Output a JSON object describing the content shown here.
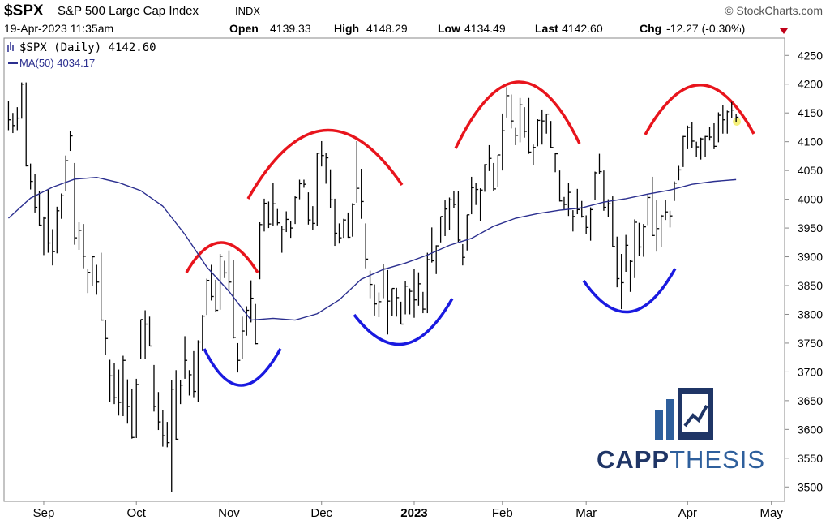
{
  "header": {
    "symbol": "$SPX",
    "name": "S&P 500 Large Cap Index",
    "exchange": "INDX",
    "source": "© StockCharts.com",
    "timestamp": "19-Apr-2023 11:35am",
    "quote": [
      {
        "label": "Open",
        "value": "4139.33"
      },
      {
        "label": "High",
        "value": "4148.29"
      },
      {
        "label": "Low",
        "value": "4134.49"
      },
      {
        "label": "Last",
        "value": "4142.60"
      },
      {
        "label": "Chg",
        "value": "-12.27 (-0.30%)"
      }
    ],
    "logo": {
      "bold": "CAPP",
      "light": "THESIS"
    }
  },
  "chart_data": {
    "type": "hlc",
    "series": [
      {
        "name": "$SPX (Daily) 4142.60",
        "color": "#000000",
        "high": [
          4170,
          4150,
          4160,
          4203,
          4203,
          4062,
          4044,
          4015,
          3970,
          4018,
          3948,
          3987,
          4010,
          4076,
          4119,
          4063,
          3960,
          3957,
          3879,
          3902,
          3886,
          3907,
          3790,
          3721,
          3716,
          3704,
          3728,
          3687,
          3671,
          3688,
          3791,
          3807,
          3796,
          3712,
          3665,
          3633,
          3613,
          3685,
          3703,
          3686,
          3762,
          3703,
          3736,
          3755,
          3799,
          3862,
          3886,
          3860,
          3905,
          3893,
          3911,
          3894,
          3750,
          3796,
          3814,
          3859,
          3818,
          3960,
          4001,
          3996,
          4029,
          3983,
          3954,
          3979,
          3962,
          4005,
          4034,
          4034,
          4012,
          3988,
          4080,
          4101,
          4081,
          4052,
          4001,
          3958,
          3966,
          3977,
          3993,
          4101,
          4053,
          3958,
          3876,
          3852,
          3838,
          3888,
          3877,
          3845,
          3846,
          3822,
          3858,
          3845,
          3879,
          3873,
          3839,
          3907,
          3951,
          3920,
          3970,
          3998,
          4003,
          4015,
          4014,
          3922,
          3973,
          4039,
          4028,
          4019,
          4061,
          4094,
          4063,
          4077,
          4149,
          4195,
          4182,
          4124,
          4176,
          4160,
          4176,
          4095,
          4139,
          4156,
          4148,
          4136,
          4081,
          4050,
          4004,
          4028,
          3981,
          4018,
          3997,
          3972,
          3986,
          4048,
          4079,
          4050,
          4000,
          4005,
          3935,
          3905,
          3938,
          3894,
          3965,
          3959,
          3957,
          4009,
          4039,
          3998,
          3973,
          3999,
          3980,
          4031,
          4058,
          4110,
          4128,
          4134,
          4100,
          4107,
          4110,
          4125,
          4132,
          4151,
          4164,
          4154,
          4169,
          4148.29
        ],
        "low": [
          4120,
          4115,
          4120,
          4140,
          4057,
          4017,
          3977,
          3954,
          3903,
          3907,
          3885,
          3906,
          3966,
          4015,
          4084,
          3921,
          3912,
          3880,
          3837,
          3850,
          3834,
          3789,
          3730,
          3647,
          3644,
          3624,
          3623,
          3610,
          3584,
          3585,
          3722,
          3722,
          3745,
          3631,
          3599,
          3570,
          3569,
          3491,
          3582,
          3644,
          3688,
          3659,
          3656,
          3648,
          3736,
          3799,
          3824,
          3804,
          3808,
          3863,
          3843,
          3758,
          3699,
          3722,
          3763,
          3786,
          3748,
          3861,
          3944,
          3950,
          3953,
          3955,
          3907,
          3943,
          3933,
          3957,
          4000,
          4020,
          3956,
          3947,
          3954,
          4057,
          4027,
          3984,
          3919,
          3923,
          3933,
          3933,
          3935,
          3994,
          3966,
          3880,
          3828,
          3798,
          3795,
          3828,
          3765,
          3797,
          3796,
          3783,
          3800,
          3800,
          3794,
          3815,
          3802,
          3802,
          3890,
          3870,
          3925,
          3936,
          3947,
          3984,
          3926,
          3885,
          3911,
          3974,
          3990,
          3962,
          4013,
          4049,
          4015,
          4021,
          4050,
          4142,
          4123,
          4094,
          4099,
          4107,
          4079,
          4060,
          4092,
          4095,
          4114,
          4089,
          4047,
          3996,
          3981,
          3971,
          3944,
          3974,
          3968,
          3940,
          3928,
          3999,
          4044,
          3980,
          3969,
          3917,
          3847,
          3809,
          3874,
          3839,
          3863,
          3901,
          3900,
          3955,
          3936,
          3909,
          3917,
          3964,
          3951,
          3997,
          4033,
          4056,
          4087,
          4089,
          4073,
          4069,
          4073,
          4102,
          4087,
          4099,
          4114,
          4114,
          4141,
          4134.49
        ],
        "close": [
          4138,
          4128,
          4141,
          4200,
          4058,
          4031,
          3986,
          3955,
          3967,
          3924,
          3909,
          3980,
          4006,
          4067,
          4110,
          3933,
          3946,
          3901,
          3873,
          3900,
          3856,
          3790,
          3758,
          3693,
          3655,
          3647,
          3720,
          3640,
          3586,
          3678,
          3791,
          3783,
          3745,
          3640,
          3613,
          3589,
          3577,
          3670,
          3583,
          3677,
          3720,
          3695,
          3666,
          3752,
          3797,
          3859,
          3831,
          3807,
          3901,
          3872,
          3856,
          3760,
          3720,
          3771,
          3807,
          3828,
          3749,
          3956,
          3993,
          3957,
          3992,
          3959,
          3947,
          3965,
          3950,
          4003,
          4027,
          4026,
          3964,
          3958,
          4080,
          4076,
          4072,
          3999,
          3941,
          3933,
          3964,
          3934,
          3991,
          4019,
          3996,
          3896,
          3852,
          3818,
          3822,
          3879,
          3823,
          3845,
          3829,
          3783,
          3849,
          3840,
          3825,
          3853,
          3809,
          3895,
          3893,
          3919,
          3970,
          3983,
          3999,
          3991,
          3929,
          3899,
          3973,
          4020,
          4017,
          4016,
          4060,
          4071,
          4018,
          4077,
          4119,
          4180,
          4136,
          4111,
          4164,
          4118,
          4082,
          4090,
          4137,
          4136,
          4148,
          4090,
          4079,
          3997,
          3991,
          4012,
          3970,
          3982,
          3970,
          3951,
          3982,
          4046,
          4048,
          3986,
          3992,
          3918,
          3862,
          3855,
          3920,
          3892,
          3960,
          3917,
          3952,
          4003,
          3937,
          3949,
          3971,
          3978,
          3971,
          4028,
          4051,
          4109,
          4125,
          4101,
          4091,
          4105,
          4109,
          4108,
          4092,
          4146,
          4138,
          4152,
          4155,
          4142.6
        ]
      }
    ],
    "ma": {
      "name": "MA(50) 4034.17",
      "color": "#2b2f8f",
      "x": [
        0,
        5,
        10,
        15,
        20,
        25,
        30,
        35,
        40,
        45,
        50,
        55,
        60,
        65,
        70,
        75,
        80,
        85,
        90,
        95,
        100,
        105,
        110,
        115,
        120,
        125,
        130,
        135,
        140,
        145,
        150,
        155,
        160,
        165
      ],
      "values": [
        3967,
        4002,
        4021,
        4035,
        4038,
        4029,
        4015,
        3988,
        3939,
        3882,
        3840,
        3790,
        3793,
        3790,
        3801,
        3825,
        3861,
        3878,
        3889,
        3903,
        3920,
        3932,
        3953,
        3967,
        3975,
        3981,
        3985,
        3995,
        4001,
        4009,
        4016,
        4026,
        4031,
        4034.17
      ]
    },
    "xlim": [
      -1,
      176
    ],
    "xticks": [
      {
        "value": 8,
        "label": "Sep"
      },
      {
        "value": 29,
        "label": "Oct"
      },
      {
        "value": 50,
        "label": "Nov"
      },
      {
        "value": 71,
        "label": "Dec"
      },
      {
        "value": 92,
        "label": "2023"
      },
      {
        "value": 112,
        "label": "Feb"
      },
      {
        "value": 131,
        "label": "Mar"
      },
      {
        "value": 154,
        "label": "Apr"
      },
      {
        "value": 173,
        "label": "May"
      }
    ],
    "ylim": [
      3475,
      4280
    ],
    "yticks": [
      3500,
      3550,
      3600,
      3650,
      3700,
      3750,
      3800,
      3850,
      3900,
      3950,
      4000,
      4050,
      4100,
      4150,
      4200,
      4250
    ],
    "grid": false
  }
}
